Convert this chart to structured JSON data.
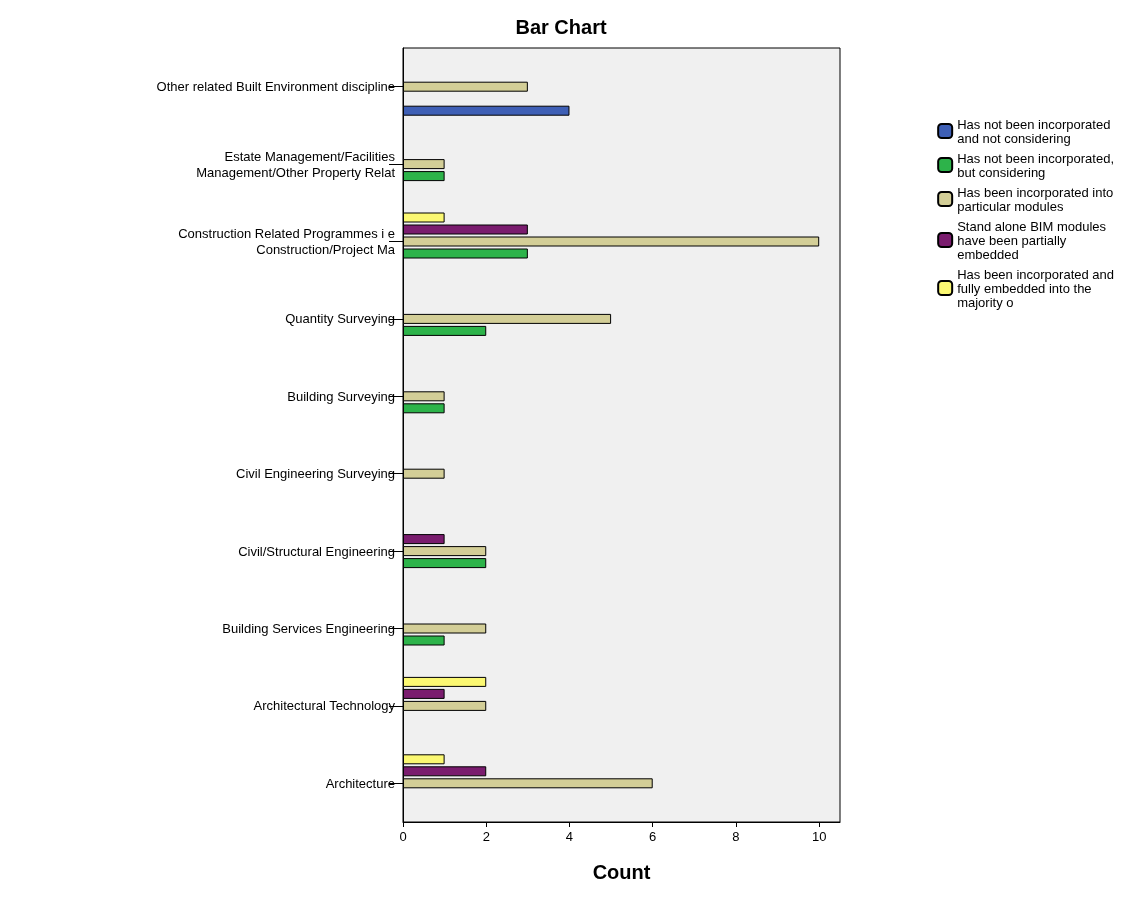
{
  "chart_data": {
    "type": "bar",
    "title": "Bar Chart",
    "xlabel": "Count",
    "orientation": "horizontal",
    "categories": [
      "Other related Built Environment discipline",
      "Estate Management/Facilities\nManagement/Other Property Relat",
      "Construction Related Programmes i e\nConstruction/Project Ma",
      "Quantity Surveying",
      "Building Surveying",
      "Civil Engineering Surveying",
      "Civil/Structural Engineering",
      "Building Services Engineering",
      "Architectural Technology",
      "Architecture"
    ],
    "series": [
      {
        "name": "Has not been incorporated\nand not considering",
        "color": "#3e5fb5",
        "values": [
          4,
          null,
          null,
          null,
          null,
          null,
          null,
          null,
          null,
          null
        ]
      },
      {
        "name": "Has not been incorporated,\nbut considering",
        "color": "#2db34a",
        "values": [
          null,
          1,
          3,
          2,
          1,
          null,
          2,
          1,
          null,
          null
        ]
      },
      {
        "name": "Has been incorporated into\nparticular modules",
        "color": "#d3ce97",
        "values": [
          3,
          1,
          10,
          5,
          1,
          1,
          2,
          2,
          2,
          6
        ]
      },
      {
        "name": "Stand alone BIM modules\nhave been partially\nembedded",
        "color": "#7a1c6e",
        "values": [
          null,
          null,
          3,
          null,
          null,
          null,
          1,
          null,
          1,
          2
        ]
      },
      {
        "name": "Has been incorporated and\nfully embedded into the\nmajority o",
        "color": "#fbf872",
        "values": [
          null,
          null,
          1,
          null,
          null,
          null,
          null,
          null,
          2,
          1
        ]
      }
    ],
    "xlim": [
      0,
      10.5
    ],
    "xticks": [
      0,
      2,
      4,
      6,
      8,
      10
    ],
    "grid": false,
    "legend": "right"
  }
}
